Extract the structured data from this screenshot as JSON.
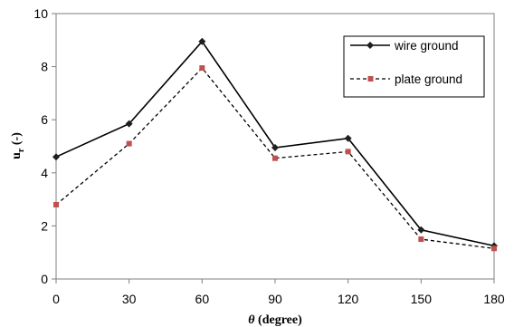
{
  "chart_data": {
    "type": "line",
    "x": [
      0,
      30,
      60,
      90,
      120,
      150,
      180
    ],
    "xticks": [
      "0",
      "30",
      "60",
      "90",
      "120",
      "150",
      "180"
    ],
    "yticks": [
      "0",
      "2",
      "4",
      "6",
      "8",
      "10"
    ],
    "xlim": [
      0,
      180
    ],
    "ylim": [
      0,
      10
    ],
    "xlabel_symbol": "θ",
    "xlabel_text": " (degree)",
    "ylabel_main": "u",
    "ylabel_sub": "r",
    "ylabel_suffix": " (-)",
    "grid": false,
    "legend_position": "top-right",
    "series": [
      {
        "name": "wire ground",
        "values": [
          4.6,
          5.85,
          8.95,
          4.95,
          5.3,
          1.85,
          1.25
        ],
        "color": "#000000",
        "line_style": "solid",
        "marker": "diamond"
      },
      {
        "name": "plate ground",
        "values": [
          2.8,
          5.1,
          7.95,
          4.55,
          4.8,
          1.5,
          1.15
        ],
        "color": "#000000",
        "marker_color": "#c0504d",
        "line_style": "dashed",
        "marker": "square"
      }
    ]
  }
}
